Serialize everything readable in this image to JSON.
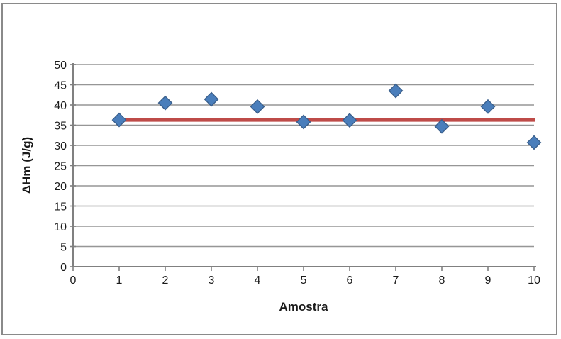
{
  "chart_data": {
    "type": "scatter",
    "title": "",
    "xlabel": "Amostra",
    "ylabel": "ΔHm (J/g)",
    "xlim": [
      0,
      10
    ],
    "ylim": [
      0,
      50
    ],
    "x_ticks": [
      0,
      1,
      2,
      3,
      4,
      5,
      6,
      7,
      8,
      9,
      10
    ],
    "y_ticks": [
      0,
      5,
      10,
      15,
      20,
      25,
      30,
      35,
      40,
      45,
      50
    ],
    "grid": "horizontal gridlines on",
    "legend": "none",
    "series": [
      {
        "name": "enthalpy-points",
        "type": "scatter",
        "marker": "diamond",
        "color": "#4A7EBB",
        "border_color": "#385D8A",
        "x": [
          1,
          2,
          3,
          4,
          5,
          6,
          7,
          8,
          9,
          10
        ],
        "y": [
          36.3,
          40.5,
          41.4,
          39.6,
          35.8,
          36.2,
          43.5,
          34.7,
          39.6,
          30.7
        ]
      },
      {
        "name": "mean-reference-line",
        "type": "line",
        "color": "#BE4B48",
        "width": 5,
        "x": [
          1,
          10
        ],
        "y": [
          36.3,
          36.3
        ]
      }
    ],
    "colors": {
      "gridline": "#969696",
      "axis": "#808080",
      "text": "#1a1a1a",
      "background": "#FFFFFF",
      "frame_border": "#8a8a8a"
    }
  }
}
